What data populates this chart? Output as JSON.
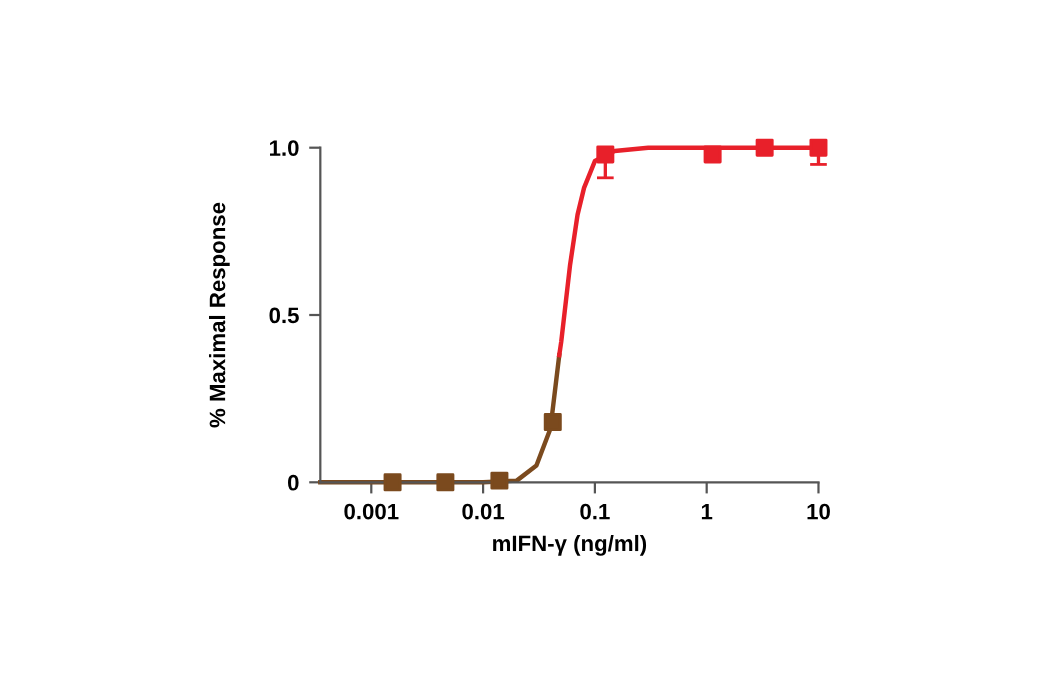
{
  "chart_data": {
    "type": "line",
    "xlabel": "mIFN-γ (ng/ml)",
    "ylabel": "% Maximal Response",
    "log": "x",
    "xlim": [
      0.00035,
      10
    ],
    "xticks": [
      0.001,
      0.01,
      0.1,
      1,
      10
    ],
    "ylim": [
      0,
      1.0
    ],
    "yticks": [
      0,
      {
        "value": 0.5,
        "label": "0.5"
      },
      {
        "value": 1.0,
        "label": "1.0"
      }
    ],
    "grid": false,
    "legend": false,
    "line_style": "solid",
    "series": [
      {
        "color": "#7b4a1e",
        "x": [
          0.00035,
          0.001,
          0.005,
          0.01,
          0.02,
          0.03,
          0.04,
          0.048
        ],
        "values": [
          0,
          0,
          0,
          0,
          0.005,
          0.05,
          0.16,
          0.38
        ]
      },
      {
        "color": "#e8202a",
        "x": [
          0.048,
          0.05,
          0.06,
          0.07,
          0.08,
          0.1,
          0.15,
          0.3,
          1,
          10
        ],
        "values": [
          0.38,
          0.42,
          0.65,
          0.8,
          0.88,
          0.96,
          0.99,
          1.0,
          1.0,
          1.0
        ]
      },
      {
        "type": "scatter",
        "marker": "square",
        "colors": [
          "#7b4a1e",
          "#7b4a1e",
          "#7b4a1e",
          "#7b4a1e",
          "#e8202a",
          "#e8202a",
          "#e8202a",
          "#e8202a"
        ],
        "x": [
          0.00155,
          0.0046,
          0.014,
          0.042,
          0.124,
          1.13,
          3.3,
          10
        ],
        "values": [
          0,
          0,
          0.005,
          0.18,
          0.98,
          0.98,
          1.0,
          1.0
        ],
        "errors": [
          null,
          null,
          null,
          null,
          [
            0.91,
            0.98
          ],
          null,
          null,
          [
            0.95,
            1.0
          ]
        ]
      }
    ]
  }
}
